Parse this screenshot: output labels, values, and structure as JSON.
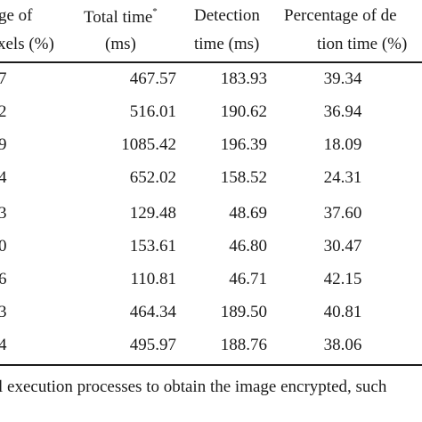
{
  "table": {
    "headers": {
      "col1": {
        "line1": "ge of",
        "line2": "xels (%)"
      },
      "col2": {
        "line1": "Total time",
        "marker": "*",
        "line2": "(ms)"
      },
      "col3": {
        "line1": "Detection",
        "line2": "time (ms)"
      },
      "col4": {
        "line1": "Percentage of de",
        "line2": "tion time (%)"
      }
    },
    "rows": [
      {
        "c1": "7",
        "c2": "467.57",
        "c3": "183.93",
        "c4": "39.34"
      },
      {
        "c1": "2",
        "c2": "516.01",
        "c3": "190.62",
        "c4": "36.94"
      },
      {
        "c1": "9",
        "c2": "1085.42",
        "c3": "196.39",
        "c4": "18.09"
      },
      {
        "c1": "4",
        "c2": "652.02",
        "c3": "158.52",
        "c4": "24.31"
      },
      {
        "c1": "3",
        "c2": "129.48",
        "c3": "48.69",
        "c4": "37.60"
      },
      {
        "c1": "0",
        "c2": "153.61",
        "c3": "46.80",
        "c4": "30.47"
      },
      {
        "c1": "6",
        "c2": "110.81",
        "c3": "46.71",
        "c4": "42.15"
      },
      {
        "c1": "3",
        "c2": "464.34",
        "c3": "189.50",
        "c4": "40.81"
      },
      {
        "c1": "4",
        "c2": "495.97",
        "c3": "188.76",
        "c4": "38.06"
      }
    ],
    "footnote": "l execution processes to obtain the image encrypted, such"
  }
}
